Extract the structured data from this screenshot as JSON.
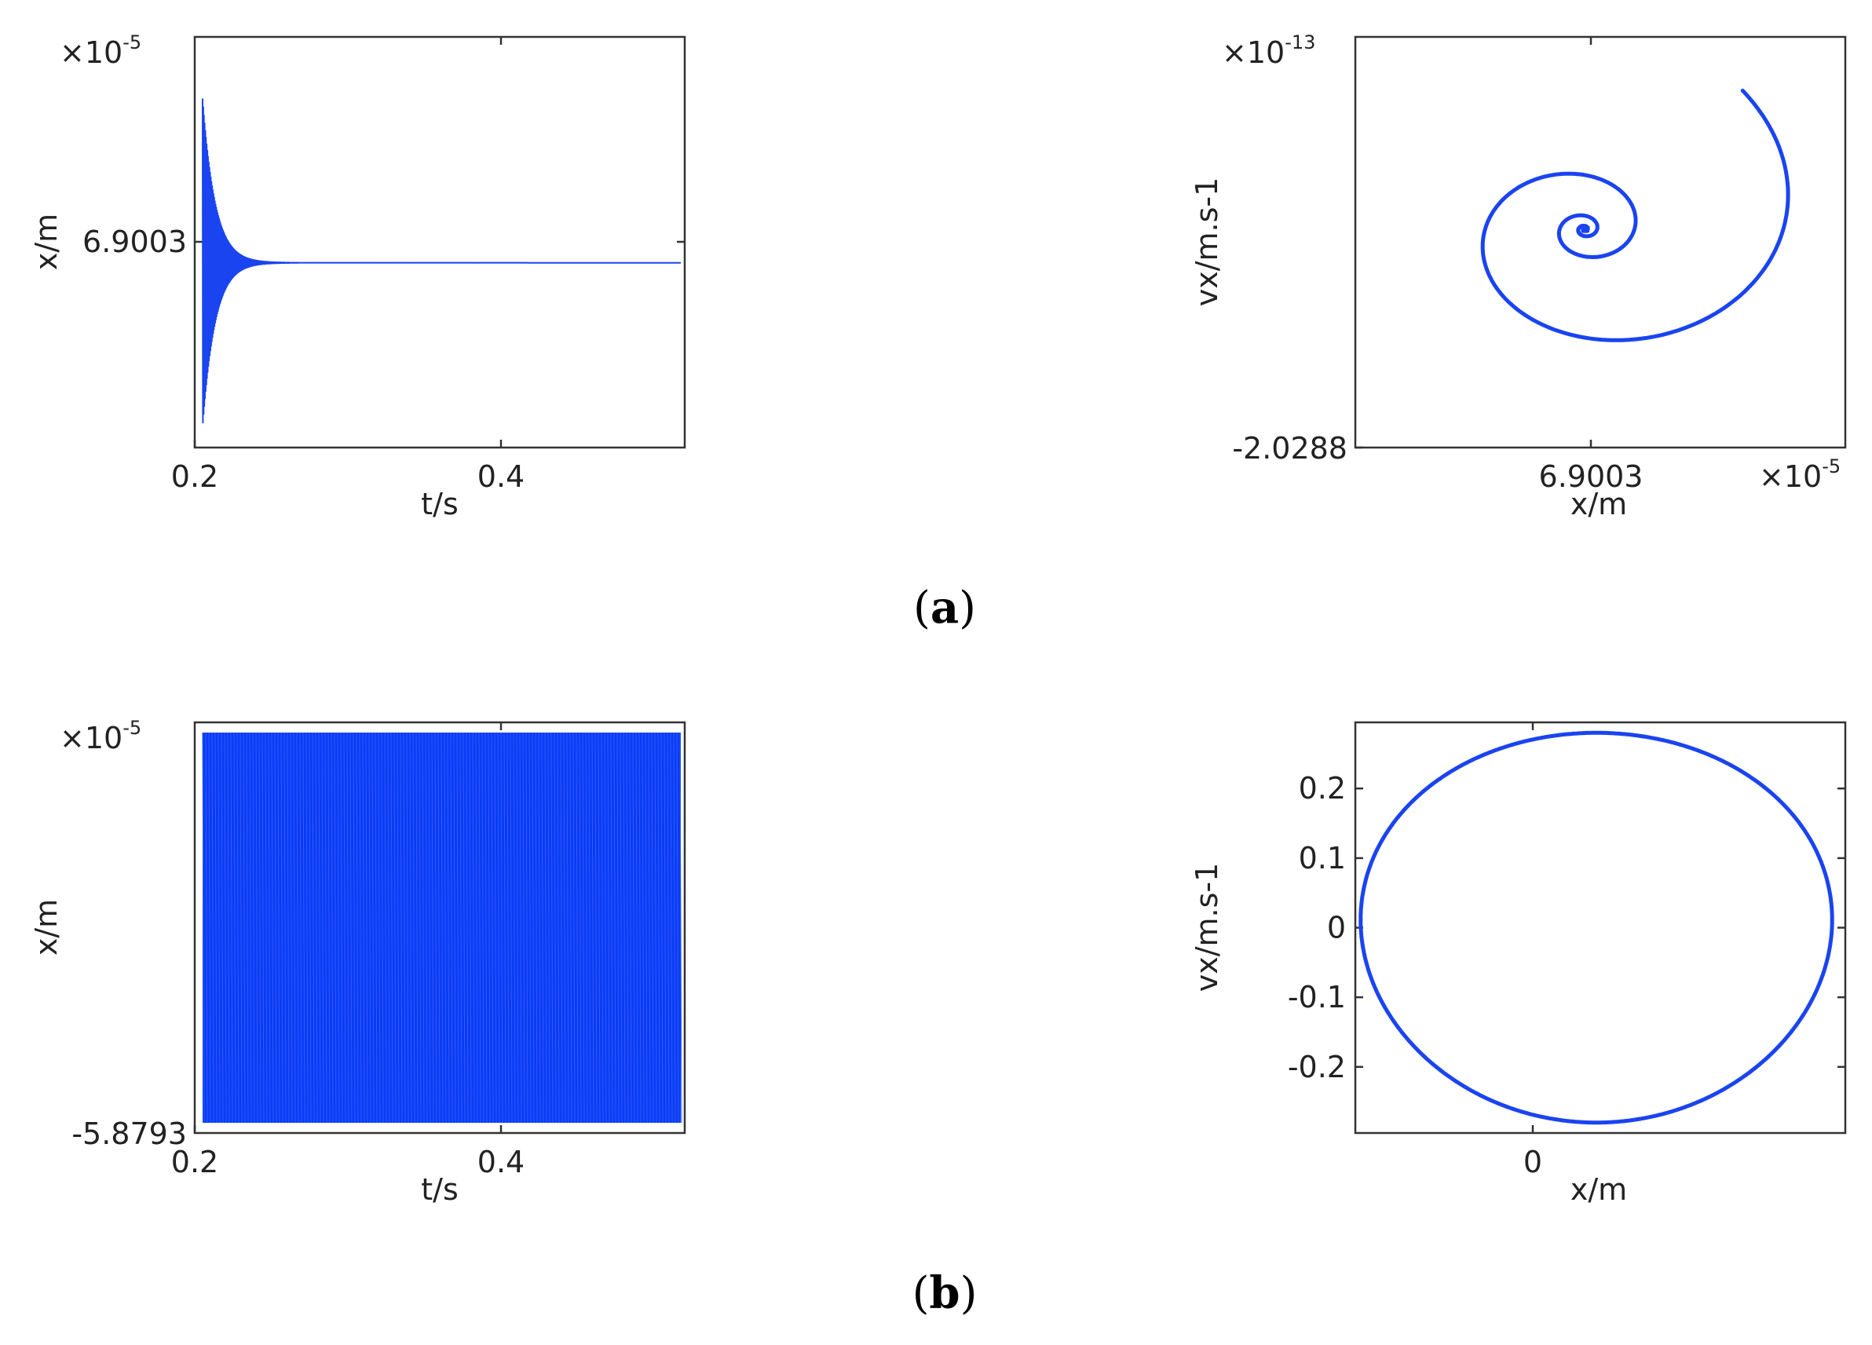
{
  "figure_labels": [
    {
      "open": "(",
      "letter": "a",
      "close": ")"
    },
    {
      "open": "(",
      "letter": "b",
      "close": ")"
    }
  ],
  "chart_data": [
    {
      "type": "line",
      "panel": "a",
      "color": "#1a44f0",
      "xlabel": "t/s",
      "ylabel": "x/m",
      "xticks": [
        "0.2",
        "0.4"
      ],
      "yticks": [
        "6.9003"
      ],
      "exponent": {
        "base": "×10",
        "power": "-5"
      },
      "xlim": [
        0.2,
        0.5125
      ],
      "ylim": [
        6.9002,
        6.9004
      ],
      "series": [
        {
          "kind": "damped-oscillation",
          "t_start": 0.205,
          "t_end": 0.51,
          "steady_value": 6.90029,
          "initial_amplitude": 8e-05,
          "decay_time": 0.008
        }
      ]
    },
    {
      "type": "line",
      "panel": "a",
      "color": "#1a44f0",
      "xlabel": "x/m",
      "ylabel": "vx/m.s-1",
      "xticks": [
        "6.9003"
      ],
      "yticks": [
        "-2.0288"
      ],
      "x_exponent": {
        "base": "×10",
        "power": "-5"
      },
      "y_exponent": {
        "base": "×10",
        "power": "-13"
      },
      "series": [
        {
          "kind": "inward-spiral",
          "turns": 11,
          "outer_radius_fraction": 0.49,
          "decay": 0.22
        }
      ]
    },
    {
      "type": "line",
      "panel": "b",
      "color": "#0a3cf5",
      "xlabel": "t/s",
      "ylabel": "x/m",
      "xticks": [
        "0.2",
        "0.4"
      ],
      "yticks": [
        "-5.8793"
      ],
      "exponent": {
        "base": "×10",
        "power": "-5"
      },
      "xlim": [
        0.2,
        0.5125
      ],
      "series": [
        {
          "kind": "sustained-oscillation",
          "t_start": 0.205,
          "t_end": 0.51
        }
      ]
    },
    {
      "type": "line",
      "panel": "b",
      "color": "#1a44f0",
      "xlabel": "x/m",
      "ylabel": "vx/m.s-1",
      "xticks": [
        "0"
      ],
      "yticks": [
        "0.2",
        "0.1",
        "0",
        "-0.1",
        "-0.2"
      ],
      "ylim": [
        -0.295,
        0.295
      ],
      "series": [
        {
          "kind": "limit-cycle",
          "y_amplitude": 0.28
        }
      ]
    }
  ]
}
